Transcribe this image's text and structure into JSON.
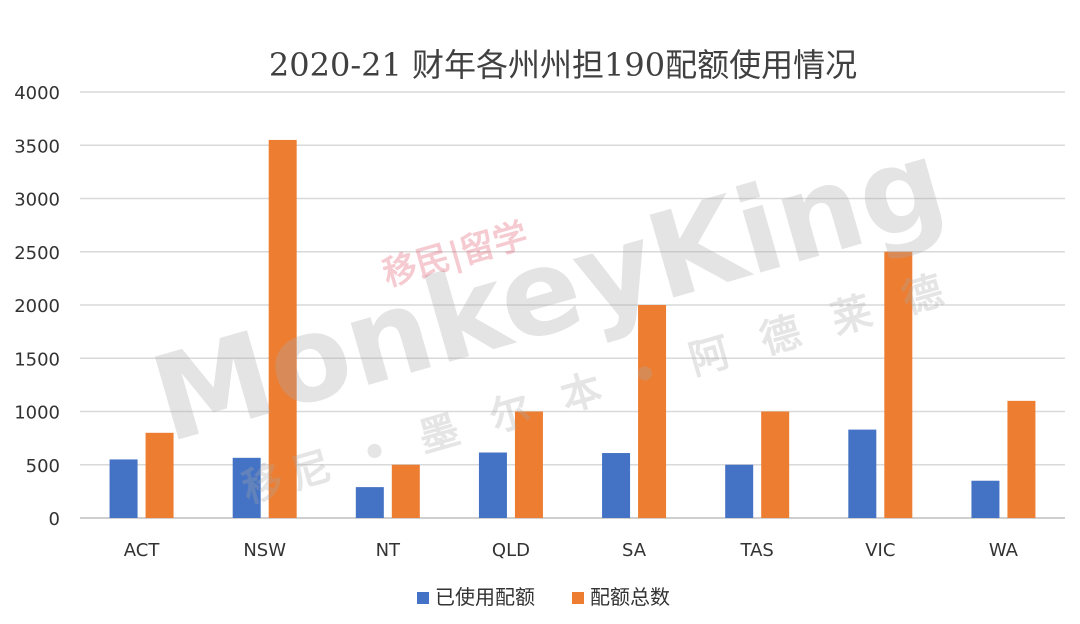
{
  "chart_data": {
    "type": "bar",
    "title": "2020-21 财年各州州担190配额使用情况",
    "xlabel": "",
    "ylabel": "",
    "categories": [
      "ACT",
      "NSW",
      "NT",
      "QLD",
      "SA",
      "TAS",
      "VIC",
      "WA"
    ],
    "series": [
      {
        "name": "已使用配额",
        "color": "#4472C4",
        "values": [
          550,
          565,
          290,
          615,
          610,
          500,
          830,
          350
        ]
      },
      {
        "name": "配额总数",
        "color": "#ED7D31",
        "values": [
          800,
          3550,
          500,
          1000,
          2000,
          1000,
          2500,
          1100
        ]
      }
    ],
    "ylim": [
      0,
      4000
    ],
    "yticks": [
      0,
      500,
      1000,
      1500,
      2000,
      2500,
      3000,
      3500,
      4000
    ],
    "grid": true,
    "legend": "bottom"
  },
  "watermark": {
    "brand": "MonkeyKing",
    "tag": "移民|留学",
    "cities": "移尼 • 墨 尔 本 • 阿 德 莱 德"
  }
}
